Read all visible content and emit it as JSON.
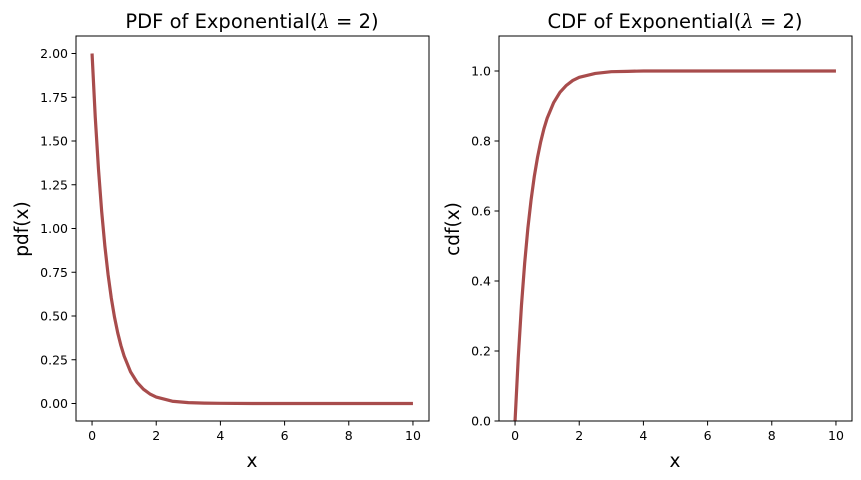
{
  "chart_data": [
    {
      "type": "line",
      "title": "PDF of Exponential(λ = 2)",
      "title_prefix": "PDF of Exponential(",
      "title_lambda": "λ",
      "title_eq": " = 2)",
      "xlabel": "x",
      "ylabel": "pdf(x)",
      "xlim": [
        -0.5,
        10.5
      ],
      "ylim": [
        -0.1,
        2.1
      ],
      "xticks": [
        0,
        2,
        4,
        6,
        8,
        10
      ],
      "xtick_labels": [
        "0",
        "2",
        "4",
        "6",
        "8",
        "10"
      ],
      "yticks": [
        0.0,
        0.25,
        0.5,
        0.75,
        1.0,
        1.25,
        1.5,
        1.75,
        2.0
      ],
      "ytick_labels": [
        "0.00",
        "0.25",
        "0.50",
        "0.75",
        "1.00",
        "1.25",
        "1.50",
        "1.75",
        "2.00"
      ],
      "grid": false,
      "series": [
        {
          "color": "#a84c4c",
          "x": [
            0,
            0.1,
            0.2,
            0.3,
            0.4,
            0.5,
            0.6,
            0.7,
            0.8,
            0.9,
            1.0,
            1.2,
            1.4,
            1.6,
            1.8,
            2.0,
            2.5,
            3.0,
            3.5,
            4.0,
            5.0,
            6.0,
            7.0,
            8.0,
            9.0,
            10.0
          ],
          "y": [
            2.0,
            1.637,
            1.341,
            1.098,
            0.899,
            0.736,
            0.602,
            0.493,
            0.404,
            0.331,
            0.271,
            0.181,
            0.122,
            0.082,
            0.055,
            0.037,
            0.013,
            0.005,
            0.002,
            0.001,
            0.0,
            0.0,
            0.0,
            0.0,
            0.0,
            0.0
          ]
        }
      ]
    },
    {
      "type": "line",
      "title": "CDF of Exponential(λ = 2)",
      "title_prefix": "CDF of Exponential(",
      "title_lambda": "λ",
      "title_eq": " = 2)",
      "xlabel": "x",
      "ylabel": "cdf(x)",
      "xlim": [
        -0.5,
        10.5
      ],
      "ylim": [
        0.0,
        1.1
      ],
      "xticks": [
        0,
        2,
        4,
        6,
        8,
        10
      ],
      "xtick_labels": [
        "0",
        "2",
        "4",
        "6",
        "8",
        "10"
      ],
      "yticks": [
        0.0,
        0.2,
        0.4,
        0.6,
        0.8,
        1.0
      ],
      "ytick_labels": [
        "0.0",
        "0.2",
        "0.4",
        "0.6",
        "0.8",
        "1.0"
      ],
      "grid": false,
      "series": [
        {
          "color": "#a84c4c",
          "x": [
            0,
            0.1,
            0.2,
            0.3,
            0.4,
            0.5,
            0.6,
            0.7,
            0.8,
            0.9,
            1.0,
            1.2,
            1.4,
            1.6,
            1.8,
            2.0,
            2.5,
            3.0,
            3.5,
            4.0,
            5.0,
            6.0,
            7.0,
            8.0,
            9.0,
            10.0
          ],
          "y": [
            0.0,
            0.181,
            0.33,
            0.451,
            0.551,
            0.632,
            0.699,
            0.753,
            0.798,
            0.835,
            0.865,
            0.909,
            0.939,
            0.959,
            0.973,
            0.982,
            0.993,
            0.998,
            0.999,
            1.0,
            1.0,
            1.0,
            1.0,
            1.0,
            1.0,
            1.0
          ]
        }
      ]
    }
  ]
}
